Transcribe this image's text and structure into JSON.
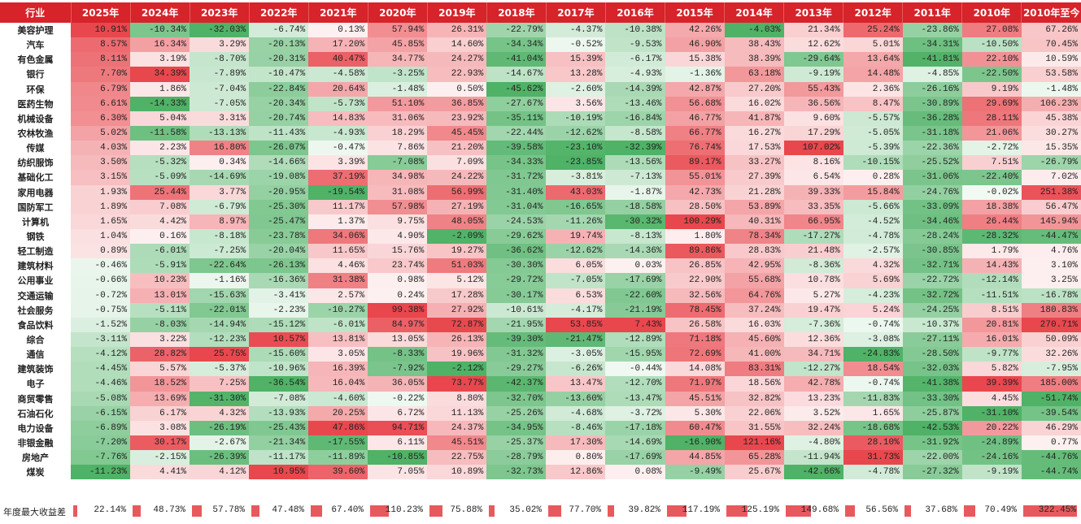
{
  "table": {
    "header": [
      "行业",
      "2025年",
      "2024年",
      "2023年",
      "2022年",
      "2021年",
      "2020年",
      "2019年",
      "2018年",
      "2017年",
      "2016年",
      "2015年",
      "2014年",
      "2013年",
      "2012年",
      "2011年",
      "2010年",
      "2010年至今"
    ],
    "rows": [
      [
        "美容护理",
        "10.91%",
        "-10.34%",
        "-32.03%",
        "-6.74%",
        "0.13%",
        "57.94%",
        "26.31%",
        "-22.79%",
        "-4.37%",
        "-10.38%",
        "42.26%",
        "-4.03%",
        "21.34%",
        "25.24%",
        "-23.86%",
        "27.08%",
        "67.26%"
      ],
      [
        "汽车",
        "8.57%",
        "16.34%",
        "3.29%",
        "-20.13%",
        "17.20%",
        "45.85%",
        "14.60%",
        "-34.34%",
        "-0.52%",
        "-9.53%",
        "46.90%",
        "38.43%",
        "12.62%",
        "5.01%",
        "-34.31%",
        "-10.50%",
        "70.45%"
      ],
      [
        "有色金属",
        "8.11%",
        "3.19%",
        "-8.70%",
        "-20.31%",
        "40.47%",
        "34.77%",
        "24.27%",
        "-41.04%",
        "15.39%",
        "-6.17%",
        "15.38%",
        "38.39%",
        "-29.64%",
        "13.64%",
        "-41.81%",
        "22.10%",
        "10.59%"
      ],
      [
        "银行",
        "7.70%",
        "34.39%",
        "-7.89%",
        "-10.47%",
        "-4.58%",
        "-3.25%",
        "22.93%",
        "-14.67%",
        "13.28%",
        "-4.93%",
        "-1.36%",
        "63.18%",
        "-9.19%",
        "14.48%",
        "-4.85%",
        "-22.50%",
        "53.58%"
      ],
      [
        "环保",
        "6.79%",
        "1.86%",
        "-7.04%",
        "-22.84%",
        "20.64%",
        "-1.48%",
        "0.50%",
        "-45.62%",
        "-2.60%",
        "-14.39%",
        "42.87%",
        "27.20%",
        "55.43%",
        "2.36%",
        "-26.16%",
        "9.19%",
        "-1.48%"
      ],
      [
        "医药生物",
        "6.61%",
        "-14.33%",
        "-7.05%",
        "-20.34%",
        "-5.73%",
        "51.10%",
        "36.85%",
        "-27.67%",
        "3.56%",
        "-13.46%",
        "56.68%",
        "16.02%",
        "36.56%",
        "8.47%",
        "-30.89%",
        "29.69%",
        "106.23%"
      ],
      [
        "机械设备",
        "6.30%",
        "5.04%",
        "3.31%",
        "-20.74%",
        "14.83%",
        "31.06%",
        "23.92%",
        "-35.11%",
        "-10.19%",
        "-16.84%",
        "46.77%",
        "41.87%",
        "9.60%",
        "-5.57%",
        "-36.28%",
        "28.11%",
        "45.38%"
      ],
      [
        "农林牧渔",
        "5.02%",
        "-11.58%",
        "-13.13%",
        "-11.43%",
        "-4.93%",
        "18.29%",
        "45.45%",
        "-22.44%",
        "-12.62%",
        "-8.58%",
        "66.77%",
        "16.27%",
        "17.29%",
        "-5.05%",
        "-31.18%",
        "21.06%",
        "30.27%"
      ],
      [
        "传媒",
        "4.03%",
        "2.23%",
        "16.80%",
        "-26.07%",
        "-0.47%",
        "7.86%",
        "21.20%",
        "-39.58%",
        "-23.10%",
        "-32.39%",
        "76.74%",
        "17.53%",
        "107.02%",
        "-5.39%",
        "-22.36%",
        "-2.72%",
        "15.35%"
      ],
      [
        "纺织服饰",
        "3.50%",
        "-5.32%",
        "0.34%",
        "-14.66%",
        "3.39%",
        "-7.08%",
        "7.09%",
        "-34.33%",
        "-23.85%",
        "-13.56%",
        "89.17%",
        "33.27%",
        "8.16%",
        "-10.15%",
        "-25.52%",
        "7.51%",
        "-26.79%"
      ],
      [
        "基础化工",
        "3.15%",
        "-5.09%",
        "-14.69%",
        "-19.08%",
        "37.19%",
        "34.98%",
        "24.22%",
        "-31.72%",
        "-3.81%",
        "-7.13%",
        "55.01%",
        "27.39%",
        "6.54%",
        "0.28%",
        "-31.06%",
        "-22.40%",
        "7.02%"
      ],
      [
        "家用电器",
        "1.93%",
        "25.44%",
        "3.77%",
        "-20.95%",
        "-19.54%",
        "31.08%",
        "56.99%",
        "-31.40%",
        "43.03%",
        "-1.87%",
        "42.73%",
        "21.28%",
        "39.33%",
        "15.84%",
        "-24.76%",
        "-0.02%",
        "251.38%"
      ],
      [
        "国防军工",
        "1.89%",
        "7.08%",
        "-6.79%",
        "-25.30%",
        "11.17%",
        "57.98%",
        "27.19%",
        "-31.04%",
        "-16.65%",
        "-18.58%",
        "28.50%",
        "53.89%",
        "33.35%",
        "-5.66%",
        "-33.09%",
        "18.38%",
        "56.47%"
      ],
      [
        "计算机",
        "1.65%",
        "4.42%",
        "8.97%",
        "-25.47%",
        "1.37%",
        "9.75%",
        "48.05%",
        "-24.53%",
        "-11.26%",
        "-30.32%",
        "100.29%",
        "40.31%",
        "66.95%",
        "-4.52%",
        "-34.46%",
        "26.44%",
        "145.94%"
      ],
      [
        "钢铁",
        "1.04%",
        "0.16%",
        "-8.18%",
        "-23.78%",
        "34.06%",
        "4.90%",
        "-2.09%",
        "-29.62%",
        "19.74%",
        "-8.13%",
        "1.80%",
        "78.34%",
        "-17.27%",
        "-4.78%",
        "-28.24%",
        "-28.32%",
        "-44.47%"
      ],
      [
        "轻工制造",
        "0.89%",
        "-6.01%",
        "-7.25%",
        "-20.04%",
        "11.65%",
        "15.76%",
        "19.27%",
        "-36.62%",
        "-12.62%",
        "-14.36%",
        "89.86%",
        "28.83%",
        "21.48%",
        "-2.57%",
        "-30.85%",
        "1.79%",
        "4.76%"
      ],
      [
        "建筑材料",
        "-0.46%",
        "-5.91%",
        "-22.64%",
        "-26.13%",
        "4.46%",
        "23.74%",
        "51.03%",
        "-30.30%",
        "6.05%",
        "0.03%",
        "26.85%",
        "42.95%",
        "-8.36%",
        "4.32%",
        "-32.71%",
        "14.43%",
        "3.10%"
      ],
      [
        "公用事业",
        "-0.66%",
        "10.23%",
        "-1.16%",
        "-16.36%",
        "31.38%",
        "0.98%",
        "5.12%",
        "-29.72%",
        "-7.05%",
        "-17.69%",
        "22.90%",
        "55.68%",
        "10.78%",
        "5.69%",
        "-22.72%",
        "-12.14%",
        "3.25%"
      ],
      [
        "交通运输",
        "-0.72%",
        "13.01%",
        "-15.63%",
        "-3.41%",
        "2.57%",
        "0.24%",
        "17.28%",
        "-30.17%",
        "6.53%",
        "-22.60%",
        "32.56%",
        "64.76%",
        "5.27%",
        "-4.23%",
        "-32.72%",
        "-11.51%",
        "-16.78%"
      ],
      [
        "社会服务",
        "-0.75%",
        "-5.11%",
        "-22.01%",
        "-2.23%",
        "-10.27%",
        "99.38%",
        "27.92%",
        "-10.61%",
        "-4.17%",
        "-21.19%",
        "78.45%",
        "37.24%",
        "19.47%",
        "5.24%",
        "-24.25%",
        "8.51%",
        "180.83%"
      ],
      [
        "食品饮料",
        "-1.52%",
        "-8.03%",
        "-14.94%",
        "-15.12%",
        "-6.01%",
        "84.97%",
        "72.87%",
        "-21.95%",
        "53.85%",
        "7.43%",
        "26.58%",
        "16.03%",
        "-7.36%",
        "-0.74%",
        "-10.37%",
        "20.81%",
        "270.71%"
      ],
      [
        "综合",
        "-3.11%",
        "3.22%",
        "-12.23%",
        "10.57%",
        "13.81%",
        "13.05%",
        "26.13%",
        "-39.30%",
        "-21.47%",
        "-12.89%",
        "71.18%",
        "45.60%",
        "12.36%",
        "-3.08%",
        "-27.11%",
        "16.01%",
        "50.09%"
      ],
      [
        "通信",
        "-4.12%",
        "28.82%",
        "25.75%",
        "-15.60%",
        "3.05%",
        "-8.33%",
        "19.96%",
        "-31.32%",
        "-3.05%",
        "-15.95%",
        "72.69%",
        "41.00%",
        "34.71%",
        "-24.83%",
        "-28.50%",
        "-9.77%",
        "32.26%"
      ],
      [
        "建筑装饰",
        "-4.45%",
        "5.57%",
        "-5.37%",
        "-10.96%",
        "16.39%",
        "-7.92%",
        "-2.12%",
        "-29.27%",
        "-6.26%",
        "-0.44%",
        "14.08%",
        "83.31%",
        "-12.27%",
        "18.54%",
        "-32.03%",
        "5.82%",
        "-7.95%"
      ],
      [
        "电子",
        "-4.46%",
        "18.52%",
        "7.25%",
        "-36.54%",
        "16.04%",
        "36.05%",
        "73.77%",
        "-42.37%",
        "13.47%",
        "-12.70%",
        "71.97%",
        "18.56%",
        "42.78%",
        "-0.74%",
        "-41.38%",
        "39.39%",
        "185.00%"
      ],
      [
        "商贸零售",
        "-5.08%",
        "13.69%",
        "-31.30%",
        "-7.08%",
        "-4.60%",
        "-0.22%",
        "8.80%",
        "-32.70%",
        "-13.60%",
        "-13.47%",
        "45.51%",
        "32.82%",
        "13.23%",
        "-11.83%",
        "-33.30%",
        "4.45%",
        "-51.74%"
      ],
      [
        "石油石化",
        "-6.15%",
        "6.17%",
        "4.32%",
        "-13.93%",
        "20.25%",
        "6.72%",
        "11.13%",
        "-25.26%",
        "-4.68%",
        "-3.72%",
        "5.30%",
        "22.06%",
        "3.52%",
        "1.65%",
        "-25.87%",
        "-31.10%",
        "-39.54%"
      ],
      [
        "电力设备",
        "-6.89%",
        "3.08%",
        "-26.19%",
        "-25.43%",
        "47.86%",
        "94.71%",
        "24.37%",
        "-34.95%",
        "-8.46%",
        "-17.18%",
        "60.47%",
        "31.55%",
        "32.24%",
        "-18.68%",
        "-42.53%",
        "20.22%",
        "46.29%"
      ],
      [
        "非银金融",
        "-7.20%",
        "30.17%",
        "-2.67%",
        "-21.34%",
        "-17.55%",
        "6.11%",
        "45.51%",
        "-25.37%",
        "17.30%",
        "-14.69%",
        "-16.90%",
        "121.16%",
        "-4.80%",
        "28.10%",
        "-31.92%",
        "-24.89%",
        "0.77%"
      ],
      [
        "房地产",
        "-7.76%",
        "-2.15%",
        "-26.39%",
        "-11.17%",
        "-11.89%",
        "-10.85%",
        "22.75%",
        "-28.79%",
        "0.80%",
        "-17.69%",
        "44.85%",
        "65.28%",
        "-11.94%",
        "31.73%",
        "-22.00%",
        "-24.16%",
        "-44.76%"
      ],
      [
        "煤炭",
        "-11.23%",
        "4.41%",
        "4.12%",
        "10.95%",
        "39.60%",
        "7.05%",
        "10.89%",
        "-32.73%",
        "12.86%",
        "0.08%",
        "-9.49%",
        "25.67%",
        "-42.66%",
        "-4.78%",
        "-27.32%",
        "-9.19%",
        "-44.74%"
      ]
    ]
  },
  "footer": {
    "label": "年度最大收益差",
    "values": [
      "22.14%",
      "48.73%",
      "57.78%",
      "47.48%",
      "67.40%",
      "110.23%",
      "75.88%",
      "35.02%",
      "77.70%",
      "39.82%",
      "117.19%",
      "125.19%",
      "149.68%",
      "56.56%",
      "37.68%",
      "70.49%",
      "322.45%"
    ]
  },
  "colors": {
    "header_bg": "#d7232a",
    "positive": "#e8474d",
    "negative": "#4fb266",
    "footer_bar": "#e8595e"
  }
}
